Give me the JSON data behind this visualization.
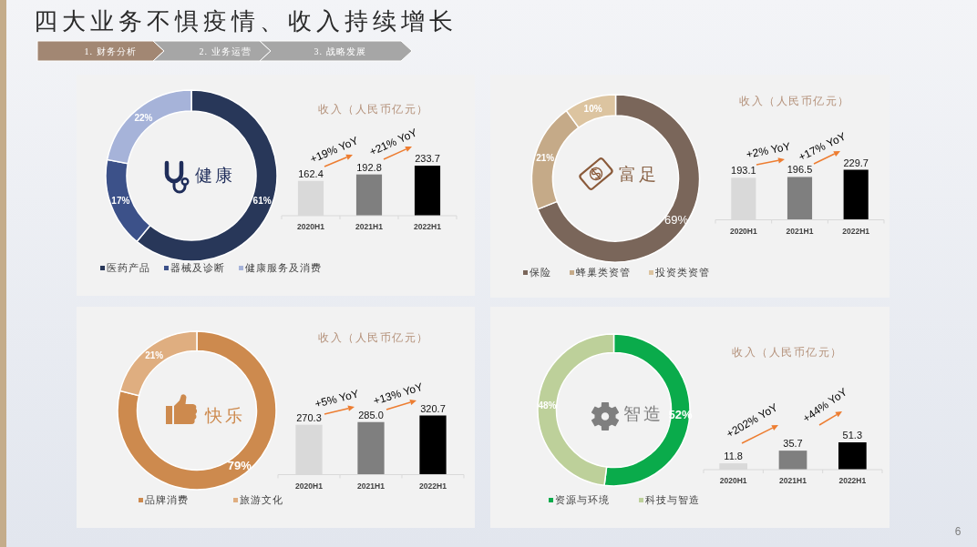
{
  "chart_data": [
    {
      "type": "other",
      "title": "四大业务不惧疫情、收入持续增长",
      "annotations": [
        "1. 财务分析",
        "2. 业务运营",
        "3. 战略发展",
        "6"
      ]
    },
    {
      "type": "donut",
      "title": "健康",
      "categories": [
        "医药产品",
        "器械及诊断",
        "健康服务及消费"
      ],
      "values": [
        61,
        17,
        22
      ],
      "colors": [
        "#283759",
        "#3c5189",
        "#a6b3d9"
      ],
      "value_labels": [
        "61%",
        "17%",
        "22%"
      ],
      "legend": "bottom"
    },
    {
      "type": "bar",
      "title": "收入（人民币亿元）",
      "categories": [
        "2020H1",
        "2021H1",
        "2022H1"
      ],
      "values": [
        162.4,
        192.8,
        233.7
      ],
      "colors": [
        "#d9d9d9",
        "#7f7f7f",
        "#000000"
      ],
      "value_labels": [
        "162.4",
        "192.8",
        "233.7"
      ],
      "tick_labels": "x",
      "annotations": [
        "+19% YoY",
        "+21% YoY"
      ]
    },
    {
      "type": "donut",
      "title": "富足",
      "categories": [
        "保险",
        "蜂巢类资管",
        "投资类资管"
      ],
      "values": [
        69,
        21,
        10
      ],
      "colors": [
        "#7a665a",
        "#c5aa88",
        "#dcc4a0"
      ],
      "value_labels": [
        "69%",
        "21%",
        "10%"
      ],
      "legend": "bottom"
    },
    {
      "type": "bar",
      "title": "收入（人民币亿元）",
      "categories": [
        "2020H1",
        "2021H1",
        "2022H1"
      ],
      "values": [
        193.1,
        196.5,
        229.7
      ],
      "colors": [
        "#d9d9d9",
        "#7f7f7f",
        "#000000"
      ],
      "value_labels": [
        "193.1",
        "196.5",
        "229.7"
      ],
      "tick_labels": "x",
      "annotations": [
        "+2% YoY",
        "+17% YoY"
      ]
    },
    {
      "type": "donut",
      "title": "快乐",
      "categories": [
        "品牌消费",
        "旅游文化"
      ],
      "values": [
        79,
        21
      ],
      "colors": [
        "#cd8a4e",
        "#dfae80"
      ],
      "value_labels": [
        "79%",
        "21%"
      ],
      "legend": "bottom"
    },
    {
      "type": "bar",
      "title": "收入（人民币亿元）",
      "categories": [
        "2020H1",
        "2021H1",
        "2022H1"
      ],
      "values": [
        270.3,
        285.0,
        320.7
      ],
      "colors": [
        "#d9d9d9",
        "#7f7f7f",
        "#000000"
      ],
      "value_labels": [
        "270.3",
        "285.0",
        "320.7"
      ],
      "tick_labels": "x",
      "annotations": [
        "+5% YoY",
        "+13% YoY"
      ]
    },
    {
      "type": "donut",
      "title": "智造",
      "categories": [
        "资源与环境",
        "科技与智造"
      ],
      "values": [
        52,
        48
      ],
      "colors": [
        "#0aab4b",
        "#bdd09a"
      ],
      "value_labels": [
        "52%",
        "48%"
      ],
      "legend": "bottom"
    },
    {
      "type": "bar",
      "title": "收入（人民币亿元）",
      "categories": [
        "2020H1",
        "2021H1",
        "2022H1"
      ],
      "values": [
        11.8,
        35.7,
        51.3
      ],
      "colors": [
        "#d9d9d9",
        "#7f7f7f",
        "#000000"
      ],
      "value_labels": [
        "11.8",
        "35.7",
        "51.3"
      ],
      "tick_labels": "x",
      "annotations": [
        "+202% YoY",
        "+44% YoY"
      ]
    }
  ]
}
